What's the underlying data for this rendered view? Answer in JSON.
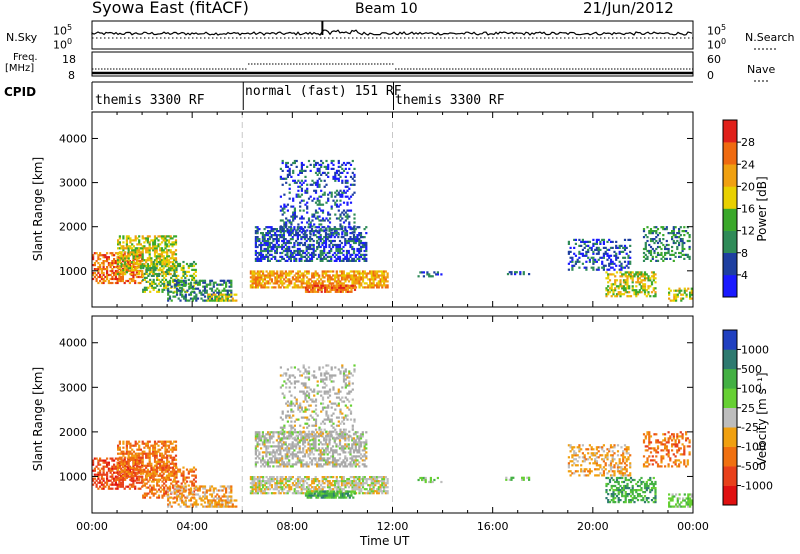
{
  "header": {
    "title": "Syowa East (fitACF)",
    "beam": "Beam 10",
    "date": "21/Jun/2012"
  },
  "side_labels": {
    "nsky": "N.Sky",
    "nsearch": "N.Search",
    "freq": "Freq.",
    "freq_unit": "[MHz]",
    "nave": "Nave",
    "cpid": "CPID"
  },
  "status_axes": {
    "noise_left_ticks": [
      "10^5",
      "10^0"
    ],
    "noise_right_ticks": [
      "10^5",
      "10^0"
    ],
    "freq_left_ticks": [
      "18",
      "8"
    ],
    "nave_right_ticks": [
      "60",
      "0"
    ]
  },
  "cpid_segments": [
    {
      "label": "themis 3300 RF",
      "start_h": 0,
      "end_h": 6
    },
    {
      "label": "normal (fast) 151 RF",
      "start_h": 6,
      "end_h": 12
    },
    {
      "label": "themis 3300 RF",
      "start_h": 12,
      "end_h": 24
    }
  ],
  "chart_data": [
    {
      "type": "heatmap",
      "name": "power",
      "ylabel": "Slant Range [km]",
      "xlabel": "",
      "yticks": [
        "1000",
        "2000",
        "3000",
        "4000"
      ],
      "ylim": [
        180,
        4600
      ],
      "xlim": [
        0,
        24
      ],
      "colorbar_label": "Power [dB]",
      "colorbar_ticks": [
        "4",
        "8",
        "12",
        "16",
        "20",
        "24",
        "28"
      ],
      "colorbar_colors": [
        "#1a1aff",
        "#1e3fa0",
        "#2f8b58",
        "#3aa82a",
        "#e8d000",
        "#f0a010",
        "#ef6a10",
        "#e0201a"
      ]
    },
    {
      "type": "heatmap",
      "name": "velocity",
      "ylabel": "Slant Range [km]",
      "xlabel": "Time UT",
      "xticks": [
        "00:00",
        "04:00",
        "08:00",
        "12:00",
        "16:00",
        "20:00",
        "00:00"
      ],
      "yticks": [
        "1000",
        "2000",
        "3000",
        "4000"
      ],
      "ylim": [
        180,
        4600
      ],
      "xlim": [
        0,
        24
      ],
      "colorbar_label": "Velocity [m s⁻¹]",
      "colorbar_ticks": [
        "1000",
        "500",
        "100",
        "25",
        "-25",
        "-100",
        "-500",
        "-1000"
      ],
      "colorbar_colors": [
        "#2040c0",
        "#2e7a70",
        "#43b043",
        "#66d033",
        "#bdbdbd",
        "#f0a010",
        "#f07010",
        "#e8401a",
        "#e01010"
      ]
    }
  ],
  "colors": {
    "background": "#ffffff",
    "ground_scatter": "#a8a8a8"
  }
}
